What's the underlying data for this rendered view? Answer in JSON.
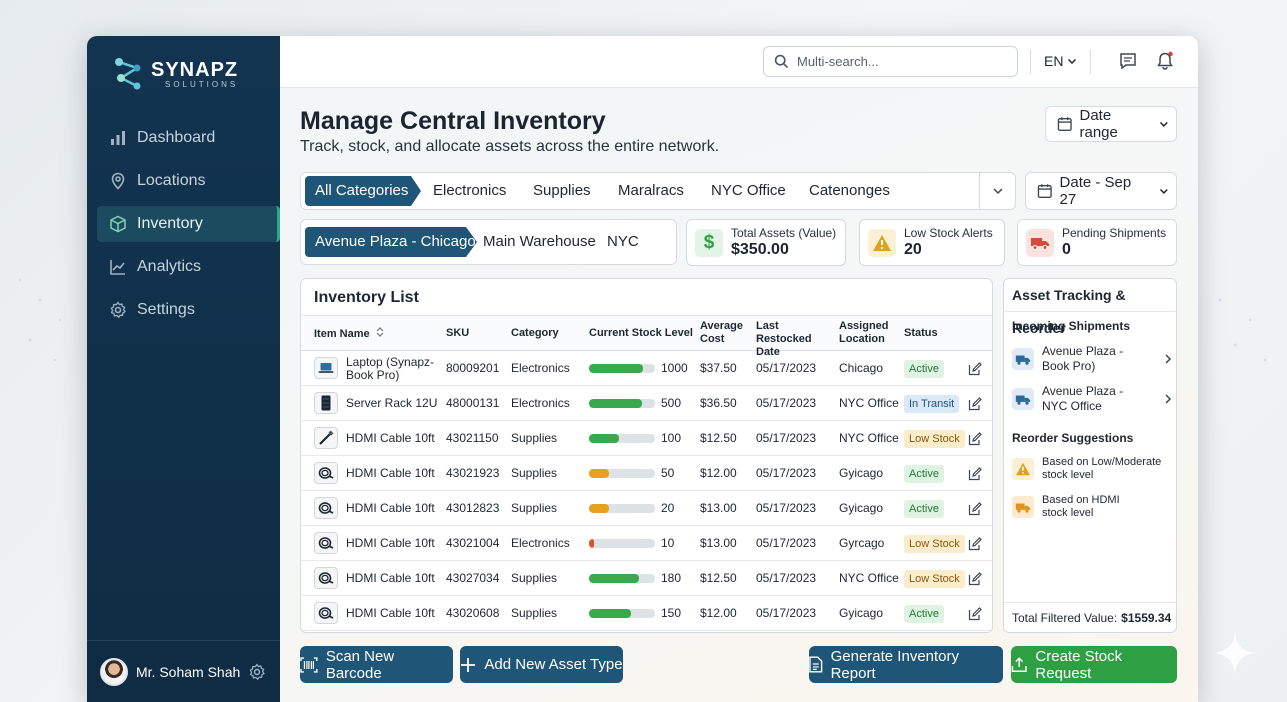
{
  "app": {
    "brand": "SYNAPZ",
    "brand_sub": "SOLUTIONS"
  },
  "sidebar": {
    "items": [
      {
        "label": "Dashboard",
        "icon": "bar-chart-icon"
      },
      {
        "label": "Locations",
        "icon": "map-pin-icon"
      },
      {
        "label": "Inventory",
        "icon": "box-icon",
        "active": true
      },
      {
        "label": "Analytics",
        "icon": "line-chart-icon"
      },
      {
        "label": "Settings",
        "icon": "gear-icon"
      }
    ],
    "user_name": "Mr. Soham Shah"
  },
  "topbar": {
    "search_placeholder": "Multi-search...",
    "language": "EN"
  },
  "page": {
    "title": "Manage Central Inventory",
    "subtitle": "Track, stock, and allocate assets across the entire network.",
    "date_range_label": "Date range",
    "date_filter_label": "Date - Sep 27"
  },
  "categories": [
    "All Categories",
    "Electronics",
    "Supplies",
    "Maralracs",
    "NYC Office",
    "Catenonges"
  ],
  "locations": [
    "Avenue Plaza - Chicago",
    "Main Warehouse",
    "NYC Office"
  ],
  "kpis": [
    {
      "label": "Total Assets (Value)",
      "value": "$350.00",
      "icon": "dollar-icon",
      "color": "#2e9f43"
    },
    {
      "label": "Low Stock Alerts",
      "value": "20",
      "icon": "warning-icon",
      "color": "#e0a21a"
    },
    {
      "label": "Pending Shipments",
      "value": "0",
      "icon": "truck-icon",
      "color": "#d84a3a"
    }
  ],
  "inventory": {
    "title": "Inventory List",
    "columns": [
      "Item Name",
      "SKU",
      "Category",
      "Current Stock Level",
      "Average Cost",
      "Last Restocked Date",
      "Assigned Location",
      "Status"
    ],
    "rows": [
      {
        "name": "Laptop (Synapz-Book Pro)",
        "sku": "80009201",
        "category": "Electronics",
        "stock": "1000",
        "level": 0.82,
        "bar_color": "#3aa94c",
        "cost": "$37.50",
        "date": "05/17/2023",
        "location": "Chicago",
        "status": "Active",
        "status_type": "active",
        "icon": "laptop-icon"
      },
      {
        "name": "Server Rack 12U",
        "sku": "48000131",
        "category": "Electronics",
        "stock": "500",
        "level": 0.8,
        "bar_color": "#3aa94c",
        "cost": "$36.50",
        "date": "05/17/2023",
        "location": "NYC Office",
        "status": "In Transit",
        "status_type": "transit",
        "icon": "server-icon"
      },
      {
        "name": "HDMI Cable 10ft",
        "sku": "43021150",
        "category": "Supplies",
        "stock": "100",
        "level": 0.46,
        "bar_color": "#3aa94c",
        "cost": "$12.50",
        "date": "05/17/2023",
        "location": "NYC Office",
        "status": "Low Stock",
        "status_type": "low",
        "icon": "cable-icon"
      },
      {
        "name": "HDMI Cable 10ft",
        "sku": "43021923",
        "category": "Supplies",
        "stock": "50",
        "level": 0.3,
        "bar_color": "#e6a21c",
        "cost": "$12.00",
        "date": "05/17/2023",
        "location": "Gyicago",
        "status": "Active",
        "status_type": "active",
        "icon": "cable-coil-icon"
      },
      {
        "name": "HDMI Cable 10ft",
        "sku": "43012823",
        "category": "Supplies",
        "stock": "20",
        "level": 0.3,
        "bar_color": "#e6a21c",
        "cost": "$13.00",
        "date": "05/17/2023",
        "location": "Gyicago",
        "status": "Active",
        "status_type": "active",
        "icon": "cable-coil-icon"
      },
      {
        "name": "HDMI Cable 10ft",
        "sku": "43021004",
        "category": "Electronics",
        "stock": "10",
        "level": 0.08,
        "bar_color": "#d9532c",
        "cost": "$13.00",
        "date": "05/17/2023",
        "location": "Gyrcago",
        "status": "Low Stock",
        "status_type": "low",
        "icon": "cable-coil-icon"
      },
      {
        "name": "HDMI Cable 10ft",
        "sku": "43027034",
        "category": "Supplies",
        "stock": "180",
        "level": 0.76,
        "bar_color": "#3aa94c",
        "cost": "$12.50",
        "date": "05/17/2023",
        "location": "NYC Office",
        "status": "Low Stock",
        "status_type": "low",
        "icon": "cable-coil-icon"
      },
      {
        "name": "HDMI Cable 10ft",
        "sku": "43020608",
        "category": "Supplies",
        "stock": "150",
        "level": 0.64,
        "bar_color": "#3aa94c",
        "cost": "$12.00",
        "date": "05/17/2023",
        "location": "Gyicago",
        "status": "Active",
        "status_type": "active",
        "icon": "cable-coil-icon"
      }
    ]
  },
  "tracking": {
    "title": "Asset Tracking & Reorder",
    "incoming_title": "Incoming Shipments",
    "incoming": [
      {
        "line1": "Avenue Plaza -",
        "line2": "Book Pro)"
      },
      {
        "line1": "Avenue Plaza -",
        "line2": "NYC Office"
      }
    ],
    "reorder_title": "Reorder Suggestions",
    "reorder": [
      {
        "line1": "Based on Low/Moderate",
        "line2": "stock level",
        "icon": "warning-icon"
      },
      {
        "line1": "Based on HDMI",
        "line2": "stock level",
        "icon": "truck-icon"
      }
    ],
    "total_label": "Total Filtered Value:",
    "total_value": "$1559.34"
  },
  "actions": {
    "scan": "Scan New Barcode",
    "add": "Add New Asset Type",
    "report": "Generate Inventory Report",
    "request": "Create Stock Request"
  },
  "colors": {
    "sidebar": "#123450",
    "primary": "#1f5677",
    "success": "#2e9f43"
  }
}
